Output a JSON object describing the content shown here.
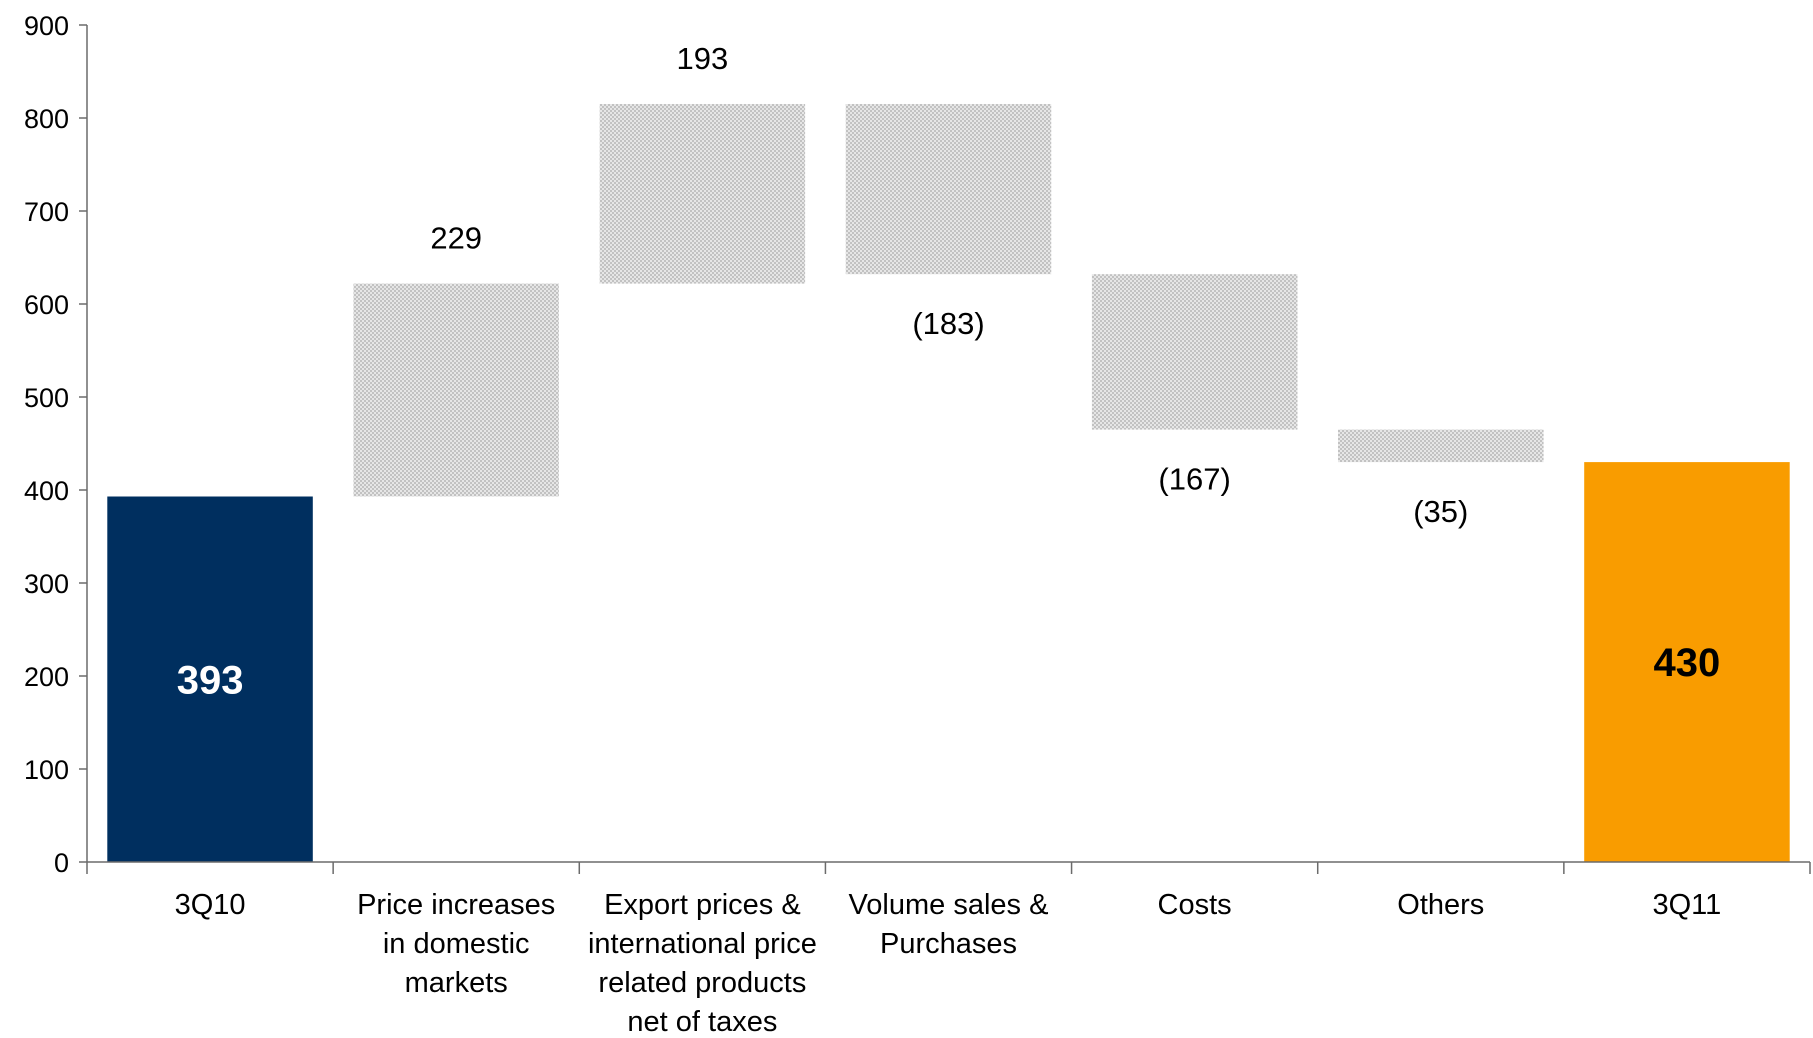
{
  "chart_data": {
    "type": "waterfall",
    "ylim": [
      0,
      900
    ],
    "yticks": [
      0,
      100,
      200,
      300,
      400,
      500,
      600,
      700,
      800,
      900
    ],
    "ytick_labels": [
      "0",
      "100",
      "200",
      "300",
      "400",
      "500",
      "600",
      "700",
      "800",
      "900"
    ],
    "grid": false,
    "categories": [
      "3Q10",
      "Price increases in domestic markets",
      "Export prices & international price related products net of taxes",
      "Volume sales & Purchases",
      "Costs",
      "Others",
      "3Q11"
    ],
    "category_label_lines": [
      [
        "3Q10"
      ],
      [
        "Price increases",
        "in domestic",
        "markets"
      ],
      [
        "Export prices &",
        "international price",
        "related products",
        "net of taxes"
      ],
      [
        "Volume sales &",
        "Purchases"
      ],
      [
        "Costs"
      ],
      [
        "Others"
      ],
      [
        "3Q11"
      ]
    ],
    "bars": [
      {
        "kind": "total",
        "start": 0,
        "end": 393,
        "value": 393,
        "label": "393",
        "color": "#002f5f",
        "label_color": "#ffffff"
      },
      {
        "kind": "delta",
        "start": 393,
        "end": 622,
        "value": 229,
        "label": "229",
        "color": "#cccccc"
      },
      {
        "kind": "delta",
        "start": 622,
        "end": 815,
        "value": 193,
        "label": "193",
        "color": "#cccccc"
      },
      {
        "kind": "delta",
        "start": 815,
        "end": 632,
        "value": -183,
        "label": "(183)",
        "color": "#cccccc"
      },
      {
        "kind": "delta",
        "start": 632,
        "end": 465,
        "value": -167,
        "label": "(167)",
        "color": "#cccccc"
      },
      {
        "kind": "delta",
        "start": 465,
        "end": 430,
        "value": -35,
        "label": "(35)",
        "color": "#cccccc"
      },
      {
        "kind": "total",
        "start": 0,
        "end": 430,
        "value": 430,
        "label": "430",
        "color": "#f99c00",
        "label_color": "#000000"
      }
    ]
  }
}
